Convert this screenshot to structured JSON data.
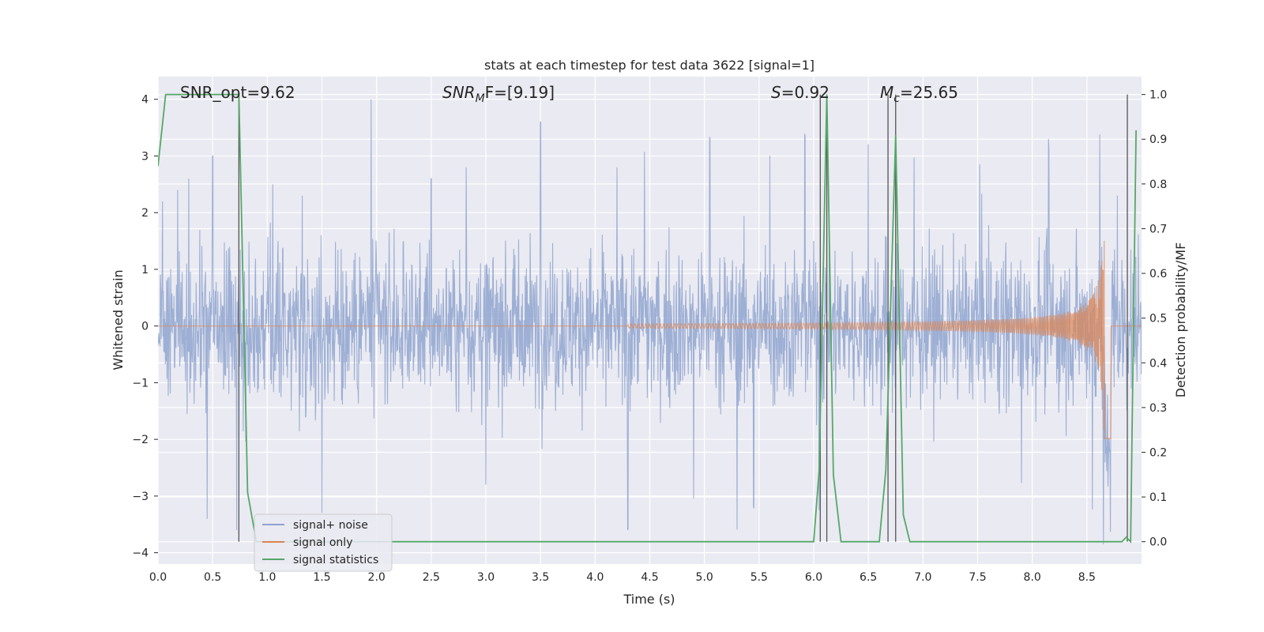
{
  "chart_data": {
    "type": "line",
    "title": "stats at each timestep for test data 3622 [signal=1]",
    "xlabel": "Time (s)",
    "ylabel": "Whitened strain",
    "ylabel_right": "Detection probability/MF",
    "xlim": [
      0,
      9.0
    ],
    "ylim": [
      -4.2,
      4.4
    ],
    "ylim_right": [
      -0.05,
      1.04
    ],
    "grid": true,
    "legend_position": "lower-left",
    "x_ticks": [
      0.0,
      0.5,
      1.0,
      1.5,
      2.0,
      2.5,
      3.0,
      3.5,
      4.0,
      4.5,
      5.0,
      5.5,
      6.0,
      6.5,
      7.0,
      7.5,
      8.0,
      8.5
    ],
    "x_tick_labels": [
      "0.0",
      "0.5",
      "1.0",
      "1.5",
      "2.0",
      "2.5",
      "3.0",
      "3.5",
      "4.0",
      "4.5",
      "5.0",
      "5.5",
      "6.0",
      "6.5",
      "7.0",
      "7.5",
      "8.0",
      "8.5"
    ],
    "y_ticks": [
      4,
      3,
      2,
      1,
      0,
      -1,
      -2,
      -3,
      -4
    ],
    "y_tick_labels": [
      "4",
      "3",
      "2",
      "1",
      "0",
      "−1",
      "−2",
      "−3",
      "−4"
    ],
    "y_right_ticks": [
      1.0,
      0.9,
      0.8,
      0.7,
      0.6,
      0.5,
      0.4,
      0.3,
      0.2,
      0.1,
      0.0
    ],
    "y_right_tick_labels": [
      "1.0",
      "0.9",
      "0.8",
      "0.7",
      "0.6",
      "0.5",
      "0.4",
      "0.3",
      "0.2",
      "0.1",
      "0.0"
    ],
    "annotations": {
      "snr_opt": "SNR_opt=9.62",
      "snr_mf": "SNR",
      "snr_mf_sub": "M",
      "snr_mf_rest": "F=[9.19]",
      "s_stat_sym": "S",
      "s_stat_val": "=0.92",
      "mc_sym": "M",
      "mc_sub": "c",
      "mc_val": "=25.65"
    },
    "legend": [
      {
        "label": "signal+ noise",
        "color": "#8fa4cf"
      },
      {
        "label": "signal only",
        "color": "#dd8452"
      },
      {
        "label": "signal statistics",
        "color": "#55a868"
      }
    ],
    "series": [
      {
        "name": "signal+ noise",
        "axis": "left",
        "color": "#8fa4cf",
        "noise_envelope_peaks": [
          {
            "x": 0.04,
            "y": 2.2
          },
          {
            "x": 0.18,
            "y": 2.4
          },
          {
            "x": 0.28,
            "y": 2.6
          },
          {
            "x": 0.5,
            "y": 3.0
          },
          {
            "x": 0.72,
            "y": 2.9
          },
          {
            "x": 1.05,
            "y": 2.5
          },
          {
            "x": 1.32,
            "y": 2.3
          },
          {
            "x": 1.95,
            "y": 4.0
          },
          {
            "x": 2.5,
            "y": 2.6
          },
          {
            "x": 2.82,
            "y": 2.8
          },
          {
            "x": 3.5,
            "y": 3.6
          },
          {
            "x": 4.2,
            "y": 2.8
          },
          {
            "x": 4.45,
            "y": 3.1
          },
          {
            "x": 5.05,
            "y": 3.3
          },
          {
            "x": 5.3,
            "y": 3.2
          },
          {
            "x": 5.6,
            "y": 3.0
          },
          {
            "x": 5.92,
            "y": 3.4
          },
          {
            "x": 6.5,
            "y": 3.2
          },
          {
            "x": 6.92,
            "y": 3.0
          },
          {
            "x": 7.52,
            "y": 2.8
          },
          {
            "x": 8.15,
            "y": 3.3
          },
          {
            "x": 8.62,
            "y": 2.5
          },
          {
            "x": 8.78,
            "y": 2.3
          }
        ],
        "noise_envelope_troughs": [
          {
            "x": 0.45,
            "y": -3.4
          },
          {
            "x": 0.72,
            "y": -3.6
          },
          {
            "x": 1.5,
            "y": -3.3
          },
          {
            "x": 3.0,
            "y": -2.8
          },
          {
            "x": 4.3,
            "y": -3.6
          },
          {
            "x": 4.9,
            "y": -3.0
          },
          {
            "x": 5.3,
            "y": -3.6
          },
          {
            "x": 5.45,
            "y": -3.2
          },
          {
            "x": 6.05,
            "y": -3.3
          },
          {
            "x": 7.9,
            "y": -2.9
          },
          {
            "x": 8.55,
            "y": -3.1
          },
          {
            "x": 8.65,
            "y": -3.3
          }
        ],
        "typical_amplitude": 1.6
      },
      {
        "name": "signal only",
        "axis": "left",
        "color": "#dd8452",
        "waveform": "chirp",
        "start_x": 4.3,
        "merger_x": 8.66,
        "peak_amplitude": 2.2
      },
      {
        "name": "signal statistics",
        "axis": "right",
        "color": "#55a868",
        "x": [
          0.0,
          0.07,
          0.12,
          0.3,
          0.6,
          0.74,
          0.82,
          0.9,
          1.0,
          2.0,
          3.0,
          4.0,
          5.0,
          6.0,
          6.05,
          6.12,
          6.18,
          6.25,
          6.4,
          6.6,
          6.66,
          6.75,
          6.82,
          6.88,
          7.0,
          8.0,
          8.82,
          8.86,
          8.9,
          8.95
        ],
        "y": [
          0.84,
          1.0,
          1.0,
          1.0,
          1.0,
          1.0,
          0.11,
          0.0,
          0.0,
          0.0,
          0.0,
          0.0,
          0.0,
          0.0,
          0.16,
          1.0,
          0.15,
          0.0,
          0.0,
          0.0,
          0.16,
          0.91,
          0.06,
          0.0,
          0.0,
          0.0,
          0.0,
          0.01,
          0.0,
          0.92
        ]
      }
    ],
    "vertical_markers_x": [
      0.74,
      6.06,
      6.12,
      6.68,
      6.75,
      8.87
    ]
  }
}
